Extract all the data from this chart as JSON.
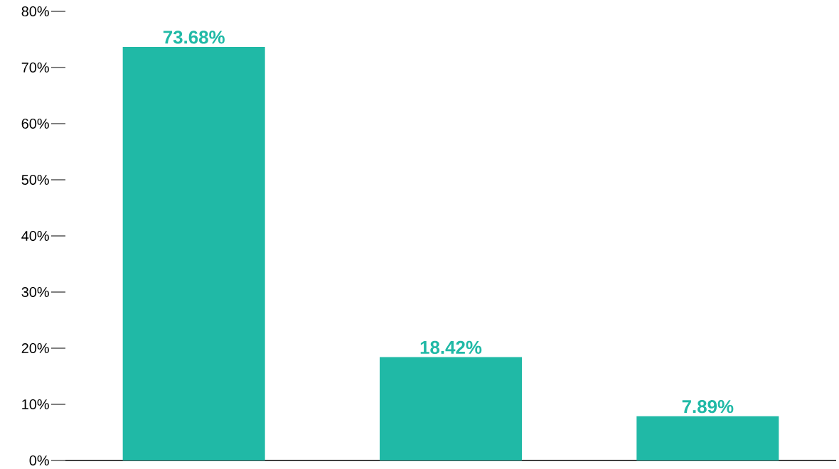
{
  "chart_data": {
    "type": "bar",
    "categories": [
      null,
      null,
      null
    ],
    "values": [
      73.68,
      18.42,
      7.89
    ],
    "value_labels": [
      "73.68%",
      "18.42%",
      "7.89%"
    ],
    "color": "#20b9a6",
    "ylim": [
      0,
      80
    ],
    "yticks": [
      {
        "value": 0,
        "label": "0%"
      },
      {
        "value": 10,
        "label": "10%"
      },
      {
        "value": 20,
        "label": "20%"
      },
      {
        "value": 30,
        "label": "30%"
      },
      {
        "value": 40,
        "label": "40%"
      },
      {
        "value": 50,
        "label": "50%"
      },
      {
        "value": 60,
        "label": "60%"
      },
      {
        "value": 70,
        "label": "70%"
      },
      {
        "value": 80,
        "label": "80%"
      }
    ]
  }
}
